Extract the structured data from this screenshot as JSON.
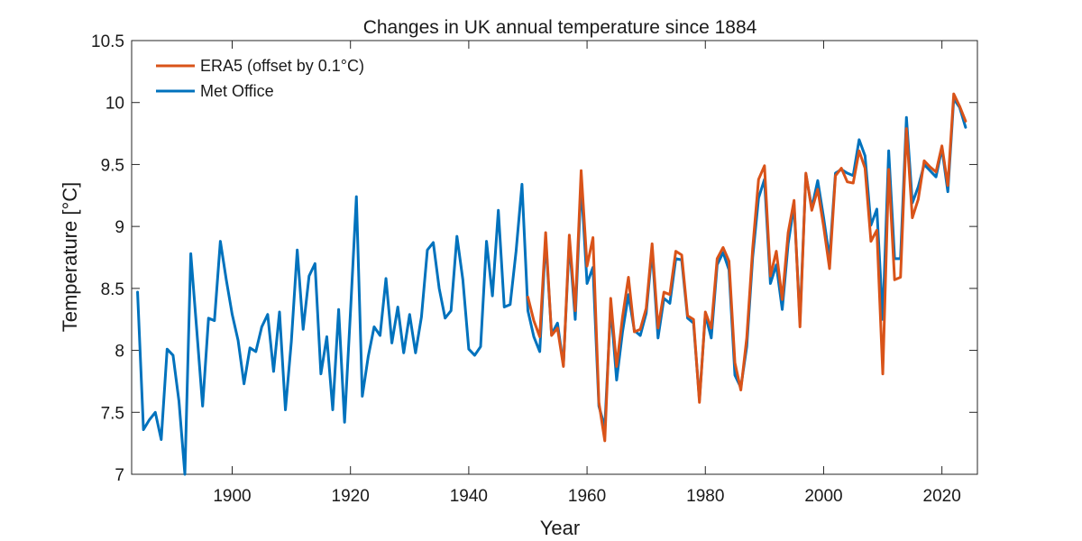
{
  "chart_data": {
    "type": "line",
    "title": "Changes in UK annual temperature since 1884",
    "xlabel": "Year",
    "ylabel": "Temperature [°C]",
    "xlim": [
      1883,
      2026
    ],
    "ylim": [
      7,
      10.5
    ],
    "x_ticks": [
      1900,
      1920,
      1940,
      1960,
      1980,
      2000,
      2020
    ],
    "y_ticks": [
      7,
      7.5,
      8,
      8.5,
      9,
      9.5,
      10,
      10.5
    ],
    "y_tick_labels": [
      "7",
      "7.5",
      "8",
      "8.5",
      "9",
      "9.5",
      "10",
      "10.5"
    ],
    "grid": false,
    "legend_position": "top-left",
    "series": [
      {
        "name": "Met Office",
        "color": "#0072BD",
        "x_start": 1884,
        "values": [
          8.47,
          7.36,
          7.44,
          7.5,
          7.28,
          8.01,
          7.96,
          7.59,
          7.0,
          8.78,
          8.17,
          7.55,
          8.26,
          8.24,
          8.88,
          8.57,
          8.29,
          8.08,
          7.73,
          8.02,
          7.99,
          8.19,
          8.29,
          7.83,
          8.31,
          7.52,
          8.07,
          8.81,
          8.17,
          8.6,
          8.7,
          7.81,
          8.11,
          7.52,
          8.33,
          7.42,
          8.31,
          9.24,
          7.63,
          7.95,
          8.19,
          8.12,
          8.58,
          8.06,
          8.35,
          7.98,
          8.29,
          7.98,
          8.27,
          8.81,
          8.87,
          8.5,
          8.26,
          8.32,
          8.92,
          8.57,
          8.01,
          7.96,
          8.03,
          8.88,
          8.44,
          9.13,
          8.35,
          8.37,
          8.8,
          9.34,
          8.32,
          8.11,
          7.99,
          8.9,
          8.13,
          8.22,
          7.88,
          8.88,
          8.25,
          9.35,
          8.54,
          8.67,
          7.55,
          7.38,
          8.36,
          7.76,
          8.15,
          8.45,
          8.16,
          8.12,
          8.3,
          8.81,
          8.1,
          8.42,
          8.38,
          8.74,
          8.73,
          8.26,
          8.22,
          7.6,
          8.29,
          8.1,
          8.69,
          8.79,
          8.65,
          7.8,
          7.7,
          8.03,
          8.75,
          9.23,
          9.38,
          8.54,
          8.69,
          8.33,
          8.86,
          9.17,
          8.24,
          9.42,
          9.15,
          9.37,
          9.07,
          8.74,
          9.43,
          9.46,
          9.43,
          9.41,
          9.7,
          9.57,
          9.01,
          9.14,
          8.25,
          9.61,
          8.74,
          8.74,
          9.88,
          9.19,
          9.32,
          9.5,
          9.45,
          9.4,
          9.63,
          9.28,
          10.03,
          9.96,
          9.8
        ]
      },
      {
        "name": "ERA5 (offset by 0.1°C)",
        "color": "#D95319",
        "x_start": 1950,
        "values": [
          8.43,
          8.24,
          8.11,
          8.95,
          8.12,
          8.18,
          7.87,
          8.93,
          8.32,
          9.45,
          8.68,
          8.91,
          7.58,
          7.27,
          8.42,
          7.87,
          8.27,
          8.59,
          8.15,
          8.17,
          8.34,
          8.86,
          8.18,
          8.47,
          8.45,
          8.8,
          8.77,
          8.28,
          8.25,
          7.58,
          8.31,
          8.18,
          8.74,
          8.83,
          8.72,
          7.9,
          7.68,
          8.1,
          8.82,
          9.38,
          9.49,
          8.6,
          8.8,
          8.41,
          8.95,
          9.21,
          8.19,
          9.43,
          9.13,
          9.3,
          9.0,
          8.66,
          9.41,
          9.47,
          9.36,
          9.35,
          9.61,
          9.47,
          8.88,
          8.97,
          7.81,
          9.46,
          8.57,
          8.59,
          9.79,
          9.07,
          9.22,
          9.53,
          9.48,
          9.44,
          9.65,
          9.33,
          10.07,
          9.97,
          9.85
        ]
      }
    ]
  }
}
